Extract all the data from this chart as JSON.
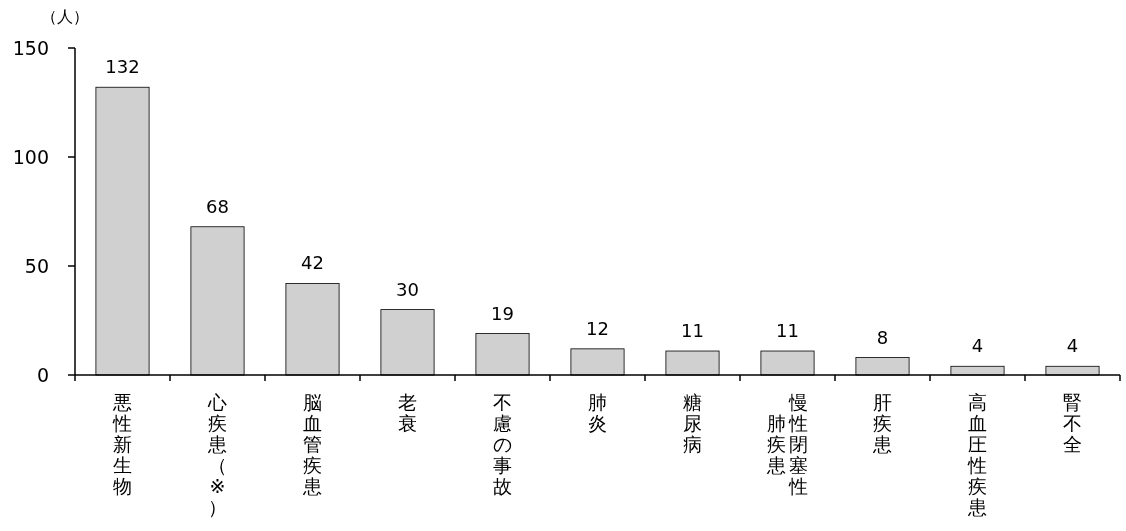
{
  "chart_data": {
    "type": "bar",
    "ylabel": "（人）",
    "categories": [
      "悪性新生物",
      "心疾患（※）",
      "脳血管疾患",
      "老衰",
      "不慮の事故",
      "肺炎",
      "糖尿病",
      "慢性閉塞性肺疾患",
      "肝疾患",
      "高血圧性疾患",
      "腎不全"
    ],
    "values": [
      132,
      68,
      42,
      30,
      19,
      12,
      11,
      11,
      8,
      4,
      4
    ],
    "color": "#d0d0d0",
    "ylim": [
      0,
      150
    ],
    "yticks": [
      0,
      50,
      100,
      150
    ],
    "data_labels": true
  }
}
